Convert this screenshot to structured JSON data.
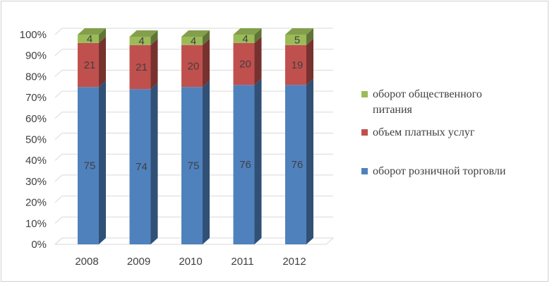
{
  "chart_data": {
    "type": "bar",
    "stacked": true,
    "percent_stacked": true,
    "three_d": true,
    "categories": [
      "2008",
      "2009",
      "2010",
      "2011",
      "2012"
    ],
    "series": [
      {
        "name": "оборот розничной торговли",
        "values": [
          75,
          74,
          75,
          76,
          76
        ],
        "color": "#4f81bd"
      },
      {
        "name": "объем платных услуг",
        "values": [
          21,
          21,
          20,
          20,
          19
        ],
        "color": "#c0504d"
      },
      {
        "name": "оборот общественного питания",
        "values": [
          4,
          4,
          4,
          4,
          5
        ],
        "color": "#9bbb59"
      }
    ],
    "y_ticks": [
      "0%",
      "10%",
      "20%",
      "30%",
      "40%",
      "50%",
      "60%",
      "70%",
      "80%",
      "90%",
      "100%"
    ],
    "ylim": [
      0,
      100
    ],
    "legend": {
      "position": "right",
      "entries": [
        {
          "lines": [
            "оборот общественного",
            "питания"
          ],
          "color": "#9bbb59"
        },
        {
          "lines": [
            "объем платных услуг"
          ],
          "color": "#c0504d"
        },
        {
          "lines": [
            "оборот розничной торговли"
          ],
          "color": "#4f81bd"
        }
      ]
    }
  }
}
